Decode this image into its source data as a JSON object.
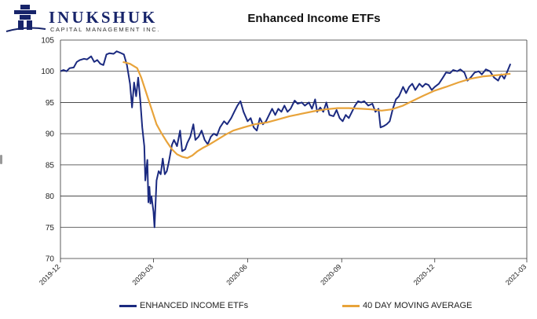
{
  "logo": {
    "name": "INUKSHUK",
    "tagline": "CAPITAL MANAGEMENT INC.",
    "color": "#17246a"
  },
  "chart_data": {
    "type": "line",
    "title": "Enhanced Income ETFs",
    "xlabel": "",
    "ylabel": "",
    "ylim": [
      70,
      105
    ],
    "yticks": [
      70,
      75,
      80,
      85,
      90,
      95,
      100,
      105
    ],
    "xtick_labels": [
      "2019-12",
      "2020-03",
      "2020-06",
      "2020-09",
      "2020-12",
      "2021-03"
    ],
    "xlim": [
      "2019-12-01",
      "2021-03-01"
    ],
    "grid": "horizontal",
    "legend_position": "bottom",
    "series": [
      {
        "name": "ENHANCED INCOME ETFs",
        "color": "#1b2a80",
        "points": [
          [
            "2019-12-01",
            100.0
          ],
          [
            "2019-12-04",
            100.2
          ],
          [
            "2019-12-07",
            100.0
          ],
          [
            "2019-12-10",
            100.5
          ],
          [
            "2019-12-14",
            100.6
          ],
          [
            "2019-12-17",
            101.5
          ],
          [
            "2019-12-20",
            101.8
          ],
          [
            "2019-12-24",
            102.0
          ],
          [
            "2019-12-27",
            101.9
          ],
          [
            "2019-12-31",
            102.4
          ],
          [
            "2020-01-03",
            101.5
          ],
          [
            "2020-01-06",
            101.8
          ],
          [
            "2020-01-09",
            101.2
          ],
          [
            "2020-01-12",
            101.0
          ],
          [
            "2020-01-15",
            102.7
          ],
          [
            "2020-01-18",
            102.9
          ],
          [
            "2020-01-22",
            102.8
          ],
          [
            "2020-01-25",
            103.2
          ],
          [
            "2020-01-28",
            103.0
          ],
          [
            "2020-02-01",
            102.7
          ],
          [
            "2020-02-04",
            101.0
          ],
          [
            "2020-02-07",
            98.0
          ],
          [
            "2020-02-09",
            94.2
          ],
          [
            "2020-02-11",
            98.2
          ],
          [
            "2020-02-13",
            96.0
          ],
          [
            "2020-02-15",
            99.0
          ],
          [
            "2020-02-17",
            95.5
          ],
          [
            "2020-02-19",
            91.0
          ],
          [
            "2020-02-21",
            88.0
          ],
          [
            "2020-02-22",
            82.5
          ],
          [
            "2020-02-24",
            85.8
          ],
          [
            "2020-02-25",
            79.0
          ],
          [
            "2020-02-26",
            81.5
          ],
          [
            "2020-02-27",
            78.8
          ],
          [
            "2020-02-28",
            80.0
          ],
          [
            "2020-03-01",
            77.5
          ],
          [
            "2020-03-02",
            75.0
          ],
          [
            "2020-03-04",
            82.5
          ],
          [
            "2020-03-06",
            84.0
          ],
          [
            "2020-03-08",
            83.5
          ],
          [
            "2020-03-10",
            86.0
          ],
          [
            "2020-03-12",
            83.5
          ],
          [
            "2020-03-14",
            84.0
          ],
          [
            "2020-03-16",
            85.5
          ],
          [
            "2020-03-19",
            88.2
          ],
          [
            "2020-03-21",
            89.0
          ],
          [
            "2020-03-24",
            88.0
          ],
          [
            "2020-03-27",
            90.5
          ],
          [
            "2020-03-29",
            87.2
          ],
          [
            "2020-04-01",
            87.5
          ],
          [
            "2020-04-03",
            88.5
          ],
          [
            "2020-04-06",
            89.5
          ],
          [
            "2020-04-09",
            91.5
          ],
          [
            "2020-04-11",
            89.0
          ],
          [
            "2020-04-14",
            89.5
          ],
          [
            "2020-04-17",
            90.5
          ],
          [
            "2020-04-20",
            89.0
          ],
          [
            "2020-04-23",
            88.3
          ],
          [
            "2020-04-26",
            89.5
          ],
          [
            "2020-04-29",
            90.0
          ],
          [
            "2020-05-02",
            89.7
          ],
          [
            "2020-05-05",
            91.0
          ],
          [
            "2020-05-09",
            92.0
          ],
          [
            "2020-05-12",
            91.5
          ],
          [
            "2020-05-16",
            92.5
          ],
          [
            "2020-05-19",
            93.5
          ],
          [
            "2020-05-22",
            94.5
          ],
          [
            "2020-05-25",
            95.2
          ],
          [
            "2020-05-28",
            93.5
          ],
          [
            "2020-06-01",
            92.0
          ],
          [
            "2020-06-04",
            92.5
          ],
          [
            "2020-06-07",
            91.0
          ],
          [
            "2020-06-10",
            90.5
          ],
          [
            "2020-06-13",
            92.5
          ],
          [
            "2020-06-16",
            91.5
          ],
          [
            "2020-06-19",
            92.0
          ],
          [
            "2020-06-22",
            93.0
          ],
          [
            "2020-06-25",
            94.0
          ],
          [
            "2020-06-28",
            93.0
          ],
          [
            "2020-07-01",
            94.0
          ],
          [
            "2020-07-04",
            93.5
          ],
          [
            "2020-07-07",
            94.5
          ],
          [
            "2020-07-10",
            93.5
          ],
          [
            "2020-07-13",
            94.0
          ],
          [
            "2020-07-17",
            95.3
          ],
          [
            "2020-07-20",
            94.8
          ],
          [
            "2020-07-24",
            95.0
          ],
          [
            "2020-07-27",
            94.5
          ],
          [
            "2020-07-31",
            95.0
          ],
          [
            "2020-08-03",
            94.0
          ],
          [
            "2020-08-06",
            95.5
          ],
          [
            "2020-08-08",
            93.5
          ],
          [
            "2020-08-11",
            94.2
          ],
          [
            "2020-08-14",
            93.5
          ],
          [
            "2020-08-17",
            95.0
          ],
          [
            "2020-08-20",
            93.0
          ],
          [
            "2020-08-24",
            92.8
          ],
          [
            "2020-08-27",
            93.8
          ],
          [
            "2020-08-30",
            92.5
          ],
          [
            "2020-09-02",
            92.0
          ],
          [
            "2020-09-05",
            93.0
          ],
          [
            "2020-09-08",
            92.5
          ],
          [
            "2020-09-11",
            93.5
          ],
          [
            "2020-09-14",
            94.5
          ],
          [
            "2020-09-17",
            95.2
          ],
          [
            "2020-09-20",
            95.0
          ],
          [
            "2020-09-23",
            95.2
          ],
          [
            "2020-09-27",
            94.5
          ],
          [
            "2020-10-01",
            94.8
          ],
          [
            "2020-10-04",
            93.5
          ],
          [
            "2020-10-07",
            94.0
          ],
          [
            "2020-10-09",
            91.0
          ],
          [
            "2020-10-12",
            91.2
          ],
          [
            "2020-10-15",
            91.5
          ],
          [
            "2020-10-18",
            92.0
          ],
          [
            "2020-10-21",
            94.0
          ],
          [
            "2020-10-24",
            95.5
          ],
          [
            "2020-10-27",
            96.0
          ],
          [
            "2020-10-31",
            97.5
          ],
          [
            "2020-11-03",
            96.5
          ],
          [
            "2020-11-06",
            97.5
          ],
          [
            "2020-11-09",
            98.0
          ],
          [
            "2020-11-12",
            97.0
          ],
          [
            "2020-11-16",
            98.0
          ],
          [
            "2020-11-19",
            97.5
          ],
          [
            "2020-11-22",
            98.0
          ],
          [
            "2020-11-25",
            97.8
          ],
          [
            "2020-11-28",
            97.0
          ],
          [
            "2020-12-01",
            97.5
          ],
          [
            "2020-12-05",
            98.0
          ],
          [
            "2020-12-09",
            99.0
          ],
          [
            "2020-12-12",
            99.8
          ],
          [
            "2020-12-16",
            99.7
          ],
          [
            "2020-12-19",
            100.2
          ],
          [
            "2020-12-23",
            100.0
          ],
          [
            "2020-12-26",
            100.3
          ],
          [
            "2020-12-30",
            99.8
          ],
          [
            "2021-01-02",
            98.5
          ],
          [
            "2021-01-05",
            99.0
          ],
          [
            "2021-01-09",
            99.8
          ],
          [
            "2021-01-13",
            100.0
          ],
          [
            "2021-01-16",
            99.5
          ],
          [
            "2021-01-20",
            100.3
          ],
          [
            "2021-01-24",
            100.0
          ],
          [
            "2021-01-28",
            99.0
          ],
          [
            "2021-02-01",
            98.5
          ],
          [
            "2021-02-04",
            99.5
          ],
          [
            "2021-02-07",
            98.8
          ],
          [
            "2021-02-10",
            100.0
          ],
          [
            "2021-02-13",
            101.2
          ]
        ]
      },
      {
        "name": "40 DAY MOVING AVERAGE",
        "color": "#e8a33a",
        "points": [
          [
            "2020-01-31",
            101.5
          ],
          [
            "2020-02-07",
            101.2
          ],
          [
            "2020-02-14",
            100.5
          ],
          [
            "2020-02-18",
            99.0
          ],
          [
            "2020-02-21",
            97.5
          ],
          [
            "2020-02-25",
            95.5
          ],
          [
            "2020-02-29",
            93.5
          ],
          [
            "2020-03-04",
            91.5
          ],
          [
            "2020-03-09",
            90.0
          ],
          [
            "2020-03-14",
            88.7
          ],
          [
            "2020-03-19",
            87.5
          ],
          [
            "2020-03-24",
            86.7
          ],
          [
            "2020-03-29",
            86.3
          ],
          [
            "2020-04-03",
            86.1
          ],
          [
            "2020-04-08",
            86.5
          ],
          [
            "2020-04-13",
            87.2
          ],
          [
            "2020-04-18",
            87.7
          ],
          [
            "2020-04-25",
            88.3
          ],
          [
            "2020-05-02",
            89.0
          ],
          [
            "2020-05-10",
            89.8
          ],
          [
            "2020-05-18",
            90.5
          ],
          [
            "2020-05-28",
            91.0
          ],
          [
            "2020-06-08",
            91.5
          ],
          [
            "2020-06-20",
            91.8
          ],
          [
            "2020-07-01",
            92.3
          ],
          [
            "2020-07-12",
            92.8
          ],
          [
            "2020-07-24",
            93.2
          ],
          [
            "2020-08-05",
            93.6
          ],
          [
            "2020-08-16",
            93.9
          ],
          [
            "2020-08-28",
            94.1
          ],
          [
            "2020-09-08",
            94.1
          ],
          [
            "2020-09-20",
            94.0
          ],
          [
            "2020-09-30",
            93.9
          ],
          [
            "2020-10-10",
            93.7
          ],
          [
            "2020-10-20",
            93.9
          ],
          [
            "2020-10-31",
            94.5
          ],
          [
            "2020-11-10",
            95.3
          ],
          [
            "2020-11-20",
            96.1
          ],
          [
            "2020-12-01",
            96.9
          ],
          [
            "2020-12-12",
            97.5
          ],
          [
            "2020-12-24",
            98.2
          ],
          [
            "2021-01-05",
            98.8
          ],
          [
            "2021-01-18",
            99.2
          ],
          [
            "2021-02-01",
            99.4
          ],
          [
            "2021-02-13",
            99.6
          ]
        ]
      }
    ]
  }
}
